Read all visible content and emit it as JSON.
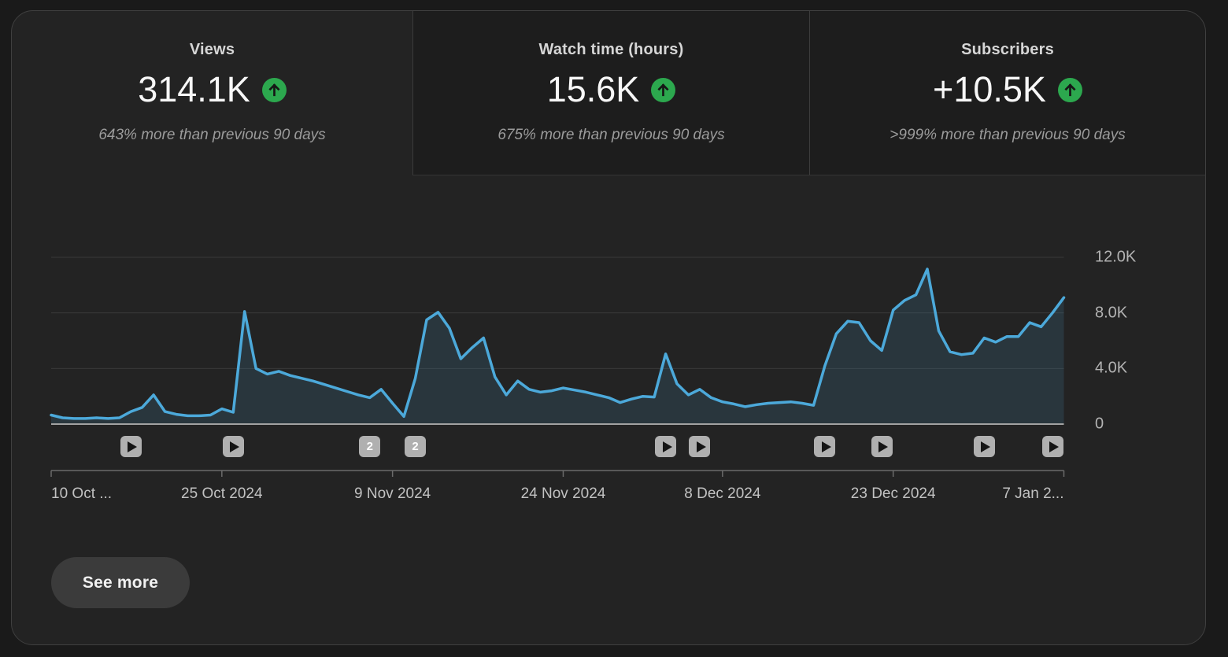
{
  "colors": {
    "positive_green": "#2ca84e",
    "line_blue": "#4ca9da",
    "area_fill": "rgba(76,169,218,0.14)",
    "card_background": "#232323",
    "unselected_tab_background": "#1d1d1d"
  },
  "metrics": [
    {
      "label": "Views",
      "value": "314.1K",
      "trend": "up",
      "comparison": "643% more than previous 90 days",
      "selected": true
    },
    {
      "label": "Watch time (hours)",
      "value": "15.6K",
      "trend": "up",
      "comparison": "675% more than previous 90 days",
      "selected": false
    },
    {
      "label": "Subscribers",
      "value": "+10.5K",
      "trend": "up",
      "comparison": ">999% more than previous 90 days",
      "selected": false
    }
  ],
  "see_more_label": "See more",
  "chart_data": {
    "type": "area",
    "metric": "Views",
    "days": 90,
    "x_start_label": "10 Oct ...",
    "x_tick_labels": [
      "10 Oct ...",
      "25 Oct 2024",
      "9 Nov 2024",
      "24 Nov 2024",
      "8 Dec 2024",
      "23 Dec 2024",
      "7 Jan 2..."
    ],
    "x_tick_days": [
      0,
      15,
      30,
      45,
      59,
      74,
      89
    ],
    "y_tick_labels": [
      "12.0K",
      "8.0K",
      "4.0K",
      "0"
    ],
    "y_tick_values": [
      12000,
      8000,
      4000,
      0
    ],
    "ylim": [
      0,
      12000
    ],
    "y_axis_position": "right",
    "grid": "on",
    "legend": "none",
    "series": [
      {
        "name": "Views",
        "values": [
          650,
          450,
          400,
          400,
          450,
          400,
          450,
          900,
          1200,
          2100,
          900,
          700,
          600,
          600,
          650,
          1100,
          850,
          8100,
          4000,
          3600,
          3800,
          3500,
          3300,
          3100,
          2850,
          2600,
          2350,
          2100,
          1900,
          2500,
          1500,
          550,
          3300,
          7500,
          8050,
          6900,
          4700,
          5500,
          6200,
          3400,
          2100,
          3100,
          2500,
          2300,
          2400,
          2600,
          2450,
          2300,
          2100,
          1900,
          1550,
          1800,
          2000,
          1950,
          5050,
          2900,
          2100,
          2500,
          1900,
          1600,
          1450,
          1250,
          1400,
          1500,
          1550,
          1600,
          1500,
          1350,
          4200,
          6500,
          7400,
          7300,
          6000,
          5300,
          8200,
          8900,
          9300,
          11150,
          6700,
          5200,
          5000,
          5100,
          6200,
          5900,
          6300,
          6300,
          7300,
          7000,
          8000,
          9100
        ]
      }
    ],
    "video_markers": [
      {
        "day": 7,
        "type": "play"
      },
      {
        "day": 16,
        "type": "play"
      },
      {
        "day": 28,
        "type": "count",
        "count": "2"
      },
      {
        "day": 32,
        "type": "count",
        "count": "2"
      },
      {
        "day": 54,
        "type": "play"
      },
      {
        "day": 57,
        "type": "play"
      },
      {
        "day": 68,
        "type": "play"
      },
      {
        "day": 73,
        "type": "play"
      },
      {
        "day": 82,
        "type": "play"
      },
      {
        "day": 88,
        "type": "play"
      }
    ]
  }
}
